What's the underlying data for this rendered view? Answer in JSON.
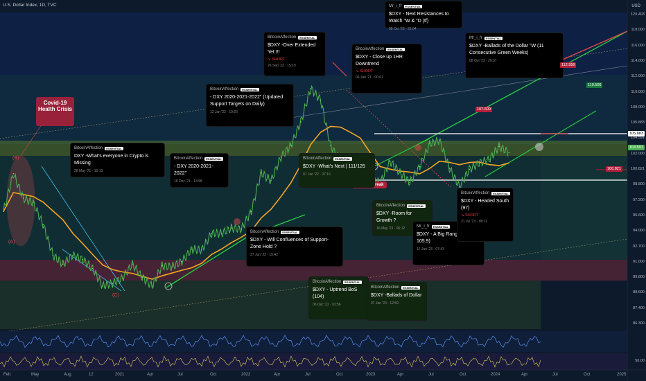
{
  "header": {
    "title": "U.S. Dollar Index, 1D, TVC",
    "currency": "USD",
    "corner_value": "120.403"
  },
  "chart_data": {
    "type": "line",
    "title": "U.S. Dollar Index, 1D, TVC",
    "x_ticks": [
      "Feb",
      "May",
      "Aug",
      "12",
      "2021",
      "Apr",
      "Jul",
      "Oct",
      "2022",
      "Apr",
      "Jul",
      "Oct",
      "2023",
      "Apr",
      "Jul",
      "Oct",
      "2024",
      "Apr",
      "Jul",
      "Oct",
      "2025"
    ],
    "y_ticks": [
      "120.403",
      "118.000",
      "116.000",
      "114.000",
      "112.000",
      "110.000",
      "108.000",
      "105.883",
      "104.591",
      "102.000",
      "100.821",
      "98.800",
      "97.200",
      "95.600",
      "94.000",
      "92.700",
      "91.000",
      "89.800",
      "88.600",
      "87.400",
      "86.300"
    ],
    "ylim": [
      85.5,
      121
    ],
    "series": [
      {
        "x": [
          "2020-02",
          "2020-03",
          "2020-04",
          "2020-05",
          "2020-06",
          "2020-07",
          "2020-08",
          "2020-09",
          "2020-10",
          "2020-11",
          "2020-12",
          "2021-01",
          "2021-02",
          "2021-03",
          "2021-04",
          "2021-05",
          "2021-06",
          "2021-07",
          "2021-08",
          "2021-09",
          "2021-10",
          "2021-11",
          "2021-12",
          "2022-01",
          "2022-02",
          "2022-03",
          "2022-04",
          "2022-05",
          "2022-06",
          "2022-07",
          "2022-08",
          "2022-09",
          "2022-10",
          "2022-11",
          "2022-12",
          "2023-01",
          "2023-02",
          "2023-03",
          "2023-04",
          "2023-05",
          "2023-06",
          "2023-07",
          "2023-08",
          "2023-09",
          "2023-10",
          "2023-11",
          "2023-12",
          "2024-01",
          "2024-02",
          "2024-03",
          "2024-04",
          "2024-05"
        ],
        "y": [
          98.5,
          102.8,
          100.0,
          99.5,
          97.0,
          93.5,
          92.5,
          93.5,
          93.0,
          92.0,
          90.0,
          90.3,
          90.9,
          92.5,
          91.0,
          90.0,
          92.3,
          92.2,
          92.8,
          94.2,
          94.1,
          96.0,
          96.0,
          96.6,
          96.5,
          98.5,
          102.9,
          102.0,
          104.7,
          106.0,
          108.7,
          112.5,
          111.2,
          106.0,
          104.2,
          102.5,
          104.8,
          102.5,
          101.7,
          104.2,
          102.9,
          101.8,
          103.6,
          106.2,
          106.6,
          103.4,
          101.3,
          103.3,
          104.0,
          104.4,
          105.9,
          105.2
        ]
      }
    ],
    "levels": [
      "105.883",
      "100.821",
      "107.609",
      "112.956",
      "110.506"
    ]
  },
  "price_tags": [
    {
      "value": "112.956",
      "color": "#b2203a"
    },
    {
      "value": "110.506",
      "color": "#1a7a3c"
    },
    {
      "value": "107.609",
      "color": "#b2203a"
    },
    {
      "value": "105.883",
      "color": "#ffffff"
    },
    {
      "value": "100.821",
      "color": "#b2203a"
    },
    {
      "value": "104.591",
      "color": "#4caf50"
    }
  ],
  "labels": {
    "covid": "Covid-19 Health Crisis",
    "make_or_break": "Make or Break",
    "a": "(A)",
    "b": "(B)",
    "c": "(C)"
  },
  "notes": [
    {
      "author": "BitcoinAffection",
      "badge": "ESSENTIAL",
      "text": "DXY       -What's everyone in Crypto is Missing",
      "date": "28 May '21 · 15:13",
      "tag": ""
    },
    {
      "author": "BitcoinAffection",
      "badge": "ESSENTIAL",
      "text": "- DXY  2020-2021-2022\"",
      "date": "16 Dec '21 · 13:58",
      "tag": ""
    },
    {
      "author": "BitcoinAffection",
      "badge": "ESSENTIAL",
      "text": "- DXY  2020-2021-2022\" (Updated Support Targets on Daily)",
      "date": "12 Jan '22 · 19:26",
      "tag": ""
    },
    {
      "author": "BitcoinAffection",
      "badge": "ESSENTIAL",
      "text": "$DXY -Over Extended Yet !!!",
      "date": "26 Sep '22 · 15:19",
      "tag": "↘ SHORT"
    },
    {
      "author": "BitcoinAffection",
      "badge": "ESSENTIAL",
      "text": "$DXY - Close up 1HR Downtrend",
      "date": "06 Jan '21 · 00:01",
      "tag": "↘ SHORT"
    },
    {
      "author": "Mr_i_fr",
      "badge": "ESSENTIAL",
      "text": "$DXY - Next Resistances to Watch \"W & \"D (tf)",
      "date": "08 Oct '23 · 21:04",
      "tag": ""
    },
    {
      "author": "Mr_i_fr",
      "badge": "ESSENTIAL",
      "text": "$DXY -Ballads of the Dollar \"W  (11 Consecutive Green Weeks)",
      "date": "08 Oct '23 · 20:37",
      "tag": ""
    },
    {
      "author": "BitcoinAffection",
      "badge": "ESSENTIAL",
      "text": "$DXY -What's Next | 111/125",
      "date": "07 Jan '22 · 07:16",
      "tag": ""
    },
    {
      "author": "BitcoinAffection",
      "badge": "ESSENTIAL",
      "text": "$DXY -Room for Growth ?",
      "date": "16 May '23 · 06:12",
      "tag": ""
    },
    {
      "author": "Mr_i_fr",
      "badge": "ESSENTIAL",
      "text": "$DXY - A Big Range (100.8 - 105.9)",
      "date": "12 Jun '23 · 07:43",
      "tag": ""
    },
    {
      "author": "BitcoinAffection",
      "badge": "ESSENTIAL",
      "text": "$DXY - Headed South (97)",
      "date": "21 Jul '23 · 08:11",
      "tag": "↘ SHORT"
    },
    {
      "author": "BitcoinAffection",
      "badge": "ESSENTIAL",
      "text": "$DXY - Will Confluences of Support-Zone Hold ?",
      "date": "27 Jun '22 · 15:42",
      "tag": ""
    },
    {
      "author": "BitcoinAffection",
      "badge": "ESSENTIAL",
      "text": "$DXY - Uptrend BoS (104)",
      "date": "06 Dec '22 · 02:56",
      "tag": ""
    },
    {
      "author": "BitcoinAffection",
      "badge": "ESSENTIAL",
      "text": "$DXY -Ballads of Dollar",
      "date": "07 Jan '23 · 12:59",
      "tag": ""
    }
  ],
  "bottom_scale": "50.00",
  "colors": {
    "price": "#4caf50",
    "ma": "#f5a623",
    "red": "#e04a4a",
    "green": "#27c93f"
  }
}
